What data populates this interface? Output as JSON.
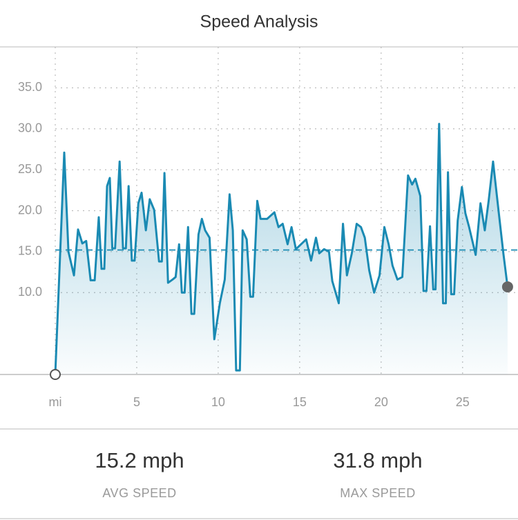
{
  "title": "Speed Analysis",
  "chart_data": {
    "type": "area-line",
    "color": "#1a8ab3",
    "grid": true,
    "xlim": [
      0,
      28.4
    ],
    "ylim": [
      0,
      40
    ],
    "xticks": [
      {
        "value": 0,
        "label": "mi"
      },
      5,
      10,
      15,
      20,
      25
    ],
    "yticks": [
      {
        "value": 10,
        "label": "10.0"
      },
      {
        "value": 15,
        "label": "15.0"
      },
      {
        "value": 20,
        "label": "20.0"
      },
      {
        "value": 25,
        "label": "25.0"
      },
      {
        "value": 30,
        "label": "30.0"
      },
      {
        "value": 35,
        "label": "35.0"
      }
    ],
    "average": 15.2,
    "x": [
      0,
      0.55,
      0.81,
      1.15,
      1.4,
      1.66,
      1.9,
      2.17,
      2.42,
      2.67,
      2.84,
      3.01,
      3.18,
      3.35,
      3.5,
      3.67,
      3.95,
      4.16,
      4.33,
      4.5,
      4.7,
      4.87,
      5.1,
      5.3,
      5.56,
      5.8,
      6.07,
      6.37,
      6.54,
      6.7,
      6.92,
      7.2,
      7.39,
      7.6,
      7.77,
      7.94,
      8.15,
      8.36,
      8.53,
      8.79,
      9.0,
      9.2,
      9.47,
      9.76,
      10.1,
      10.4,
      10.7,
      10.9,
      11.1,
      11.33,
      11.5,
      11.75,
      11.97,
      12.14,
      12.4,
      12.6,
      13.0,
      13.45,
      13.7,
      13.96,
      14.26,
      14.5,
      14.77,
      15.4,
      15.7,
      16.0,
      16.2,
      16.5,
      16.8,
      17.0,
      17.4,
      17.66,
      17.9,
      18.2,
      18.5,
      18.76,
      19.0,
      19.27,
      19.57,
      19.9,
      20.2,
      20.46,
      20.7,
      21.0,
      21.3,
      21.65,
      21.9,
      22.1,
      22.4,
      22.6,
      22.78,
      23.0,
      23.2,
      23.34,
      23.56,
      23.8,
      23.97,
      24.1,
      24.3,
      24.48,
      24.7,
      24.96,
      25.17,
      25.4,
      25.8,
      26.1,
      26.36,
      26.6,
      26.87,
      27.2,
      27.5,
      27.76
    ],
    "values": [
      0,
      27.1,
      15.0,
      12.1,
      17.7,
      16.0,
      16.3,
      11.5,
      11.5,
      19.2,
      12.9,
      12.9,
      23.0,
      24.0,
      15.4,
      15.4,
      26.0,
      15.4,
      15.4,
      23.0,
      13.9,
      13.9,
      20.9,
      22.2,
      17.6,
      21.4,
      20.1,
      13.8,
      13.8,
      24.6,
      11.2,
      11.6,
      11.9,
      15.9,
      10.0,
      10.0,
      18.0,
      7.4,
      7.4,
      17.1,
      19.0,
      17.6,
      16.7,
      4.3,
      8.7,
      11.6,
      22.0,
      17.6,
      0.5,
      0.5,
      17.6,
      16.5,
      9.5,
      9.5,
      21.2,
      19.0,
      19.0,
      19.8,
      18.0,
      18.4,
      15.9,
      18.0,
      15.3,
      16.5,
      13.9,
      16.7,
      14.8,
      15.3,
      15.0,
      11.4,
      8.7,
      18.4,
      12.1,
      14.8,
      18.4,
      18.0,
      16.7,
      12.7,
      10.0,
      12.1,
      18.0,
      15.9,
      13.3,
      11.6,
      11.9,
      24.3,
      23.2,
      23.9,
      21.8,
      10.2,
      10.2,
      18.1,
      10.4,
      10.4,
      30.6,
      8.7,
      8.7,
      24.7,
      9.8,
      9.8,
      18.8,
      22.9,
      19.7,
      18.0,
      14.6,
      20.9,
      17.6,
      21.2,
      26.0,
      20.1,
      14.8,
      10.7
    ]
  },
  "stats": [
    {
      "value": "15.2 mph",
      "label": "AVG SPEED"
    },
    {
      "value": "31.8 mph",
      "label": "MAX SPEED"
    }
  ]
}
